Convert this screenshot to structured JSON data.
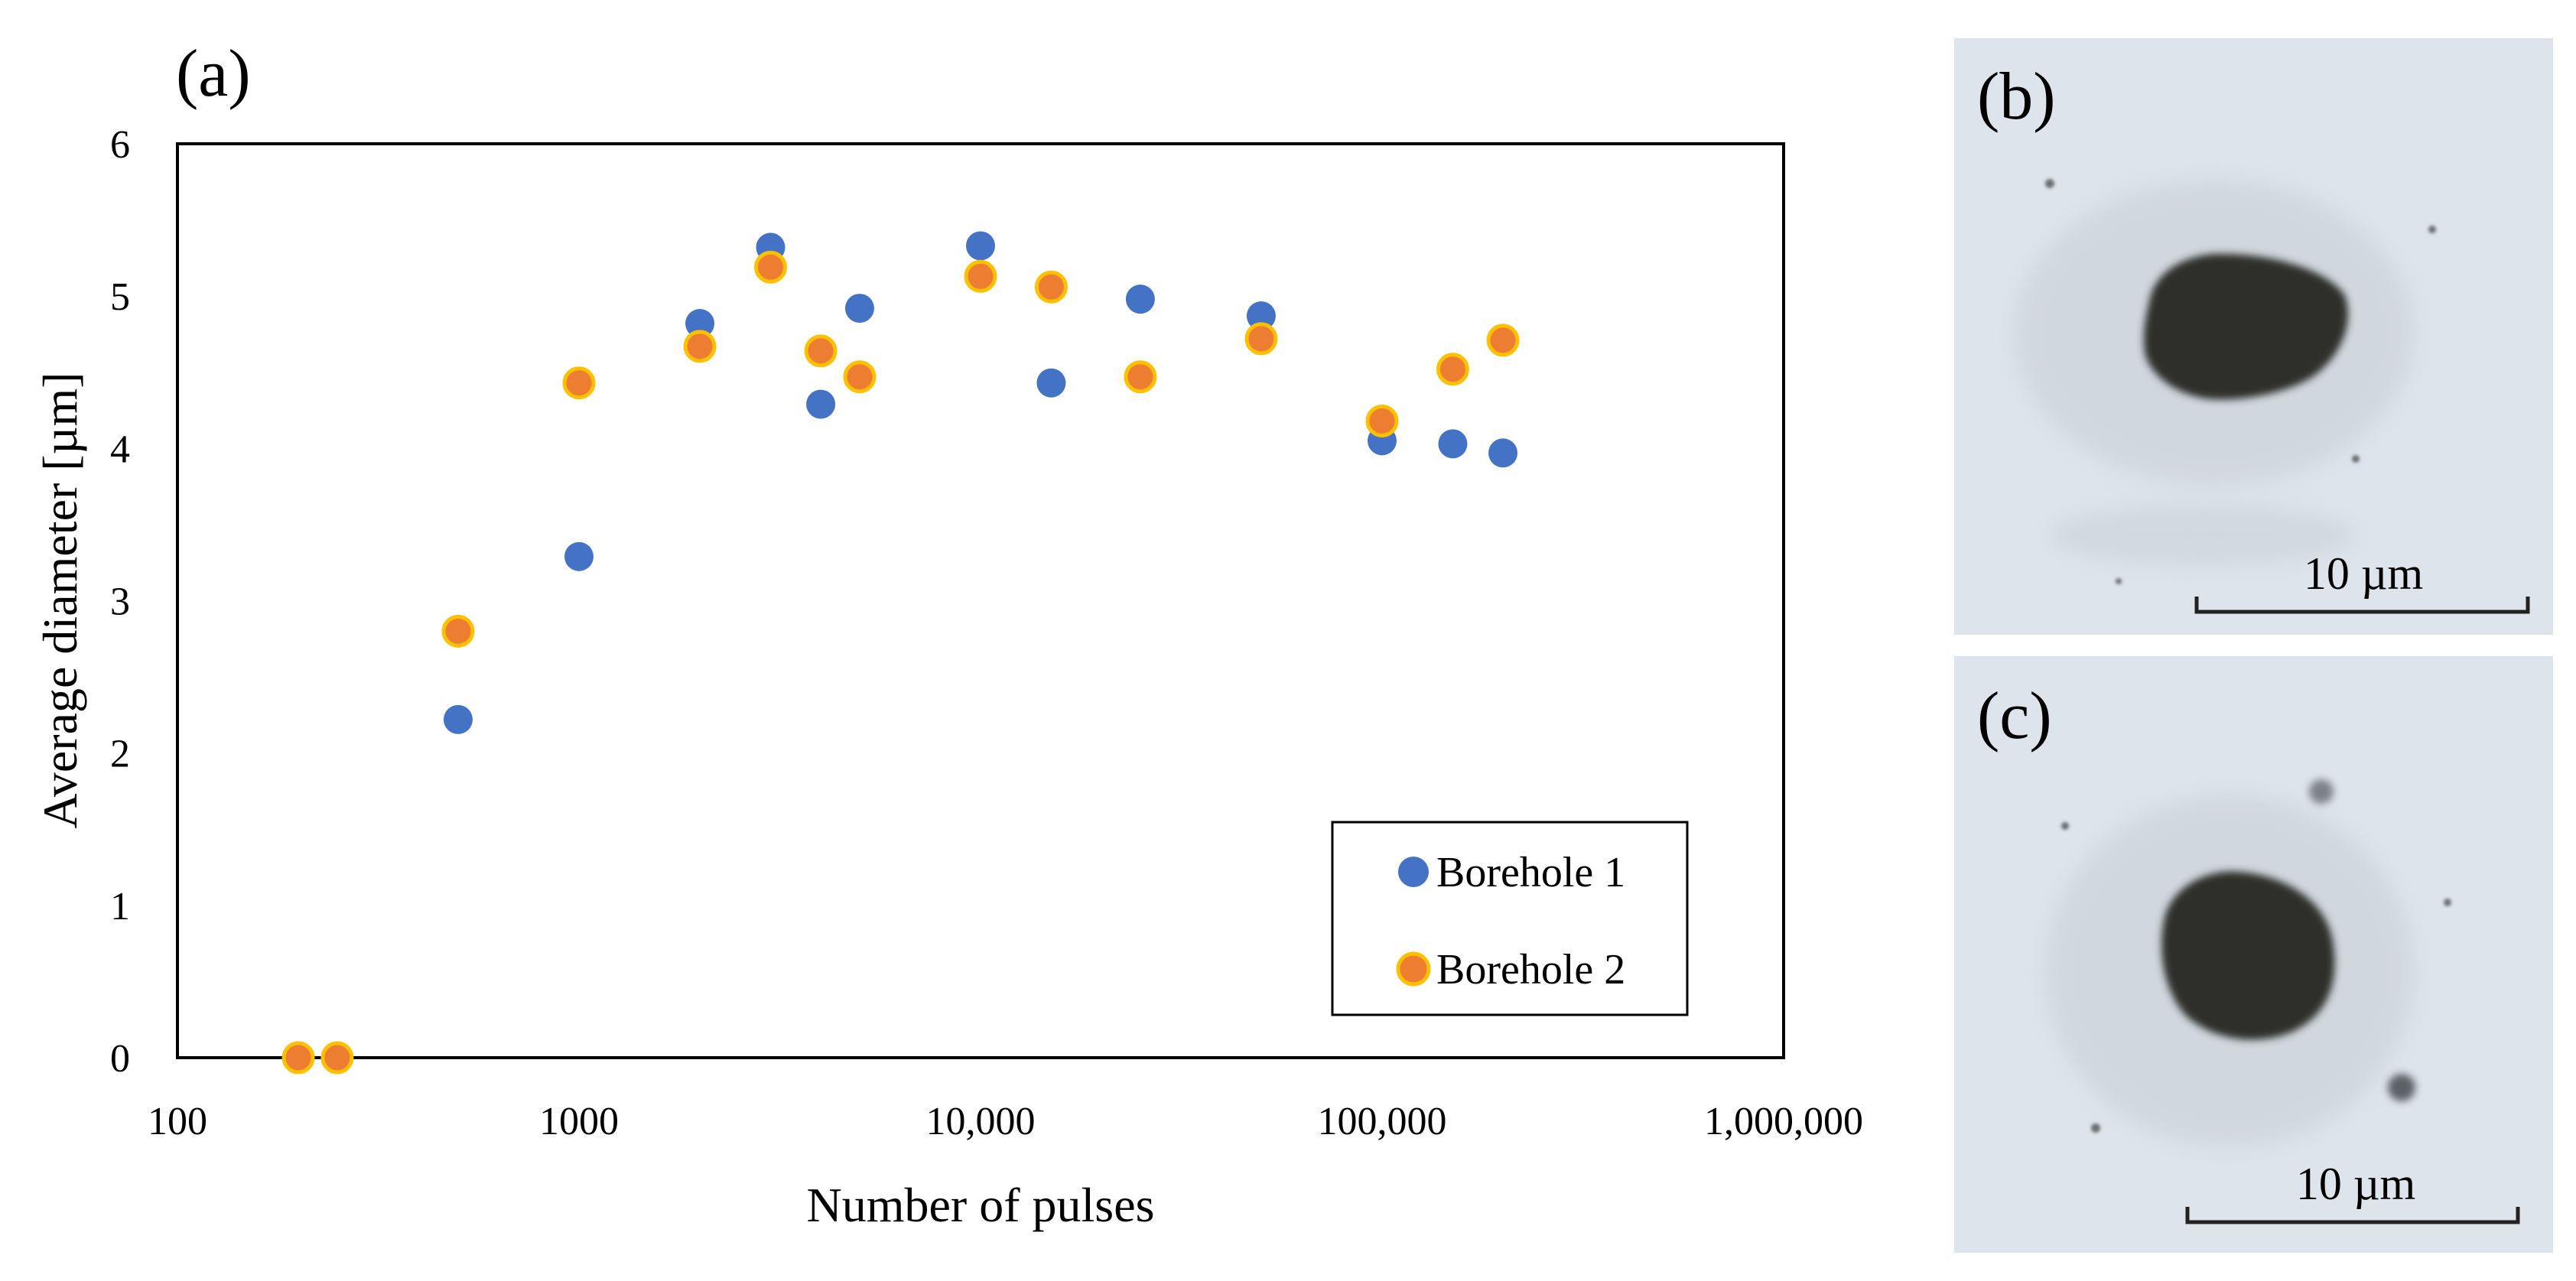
{
  "figure": {
    "panel_labels": {
      "a": "(a)",
      "b": "(b)",
      "c": "(c)"
    },
    "micrographs": [
      {
        "panel": "b",
        "scale_bar_label": "10 µm",
        "colors": {
          "background": "#dde4ec",
          "particle": "#2e2f2c"
        }
      },
      {
        "panel": "c",
        "scale_bar_label": "10 µm",
        "colors": {
          "background": "#dde4ec",
          "particle": "#2e2f2c"
        }
      }
    ]
  },
  "chart_data": {
    "type": "scatter",
    "title": "",
    "xlabel": "Number of pulses",
    "ylabel": "Average diameter [µm]",
    "xscale": "log",
    "xlim": [
      100,
      1000000
    ],
    "ylim": [
      0,
      6
    ],
    "xticks": [
      {
        "value": 100,
        "label": "100"
      },
      {
        "value": 1000,
        "label": "1000"
      },
      {
        "value": 10000,
        "label": "10,000"
      },
      {
        "value": 100000,
        "label": "100,000"
      },
      {
        "value": 1000000,
        "label": "1,000,000"
      }
    ],
    "yticks": [
      {
        "value": 0,
        "label": "0"
      },
      {
        "value": 1,
        "label": "1"
      },
      {
        "value": 2,
        "label": "2"
      },
      {
        "value": 3,
        "label": "3"
      },
      {
        "value": 4,
        "label": "4"
      },
      {
        "value": 5,
        "label": "5"
      },
      {
        "value": 6,
        "label": "6"
      }
    ],
    "grid": false,
    "legend_position": "bottom-right",
    "series": [
      {
        "name": "Borehole 1",
        "color": "#4472c4",
        "points": [
          {
            "x": 200,
            "y": 0
          },
          {
            "x": 250,
            "y": 0
          },
          {
            "x": 500,
            "y": 2.22
          },
          {
            "x": 1000,
            "y": 3.29
          },
          {
            "x": 2000,
            "y": 4.82
          },
          {
            "x": 3000,
            "y": 5.32
          },
          {
            "x": 4000,
            "y": 4.29
          },
          {
            "x": 5000,
            "y": 4.92
          },
          {
            "x": 10000,
            "y": 5.33
          },
          {
            "x": 15000,
            "y": 4.43
          },
          {
            "x": 25000,
            "y": 4.98
          },
          {
            "x": 50000,
            "y": 4.87
          },
          {
            "x": 100000,
            "y": 4.05
          },
          {
            "x": 150000,
            "y": 4.03
          },
          {
            "x": 200000,
            "y": 3.97
          }
        ]
      },
      {
        "name": "Borehole 2",
        "color": "#ed7d31",
        "edge_color": "#ffc000",
        "points": [
          {
            "x": 200,
            "y": 0
          },
          {
            "x": 250,
            "y": 0
          },
          {
            "x": 500,
            "y": 2.8
          },
          {
            "x": 1000,
            "y": 4.43
          },
          {
            "x": 2000,
            "y": 4.67
          },
          {
            "x": 3000,
            "y": 5.19
          },
          {
            "x": 4000,
            "y": 4.64
          },
          {
            "x": 5000,
            "y": 4.47
          },
          {
            "x": 10000,
            "y": 5.13
          },
          {
            "x": 15000,
            "y": 5.06
          },
          {
            "x": 25000,
            "y": 4.47
          },
          {
            "x": 50000,
            "y": 4.72
          },
          {
            "x": 100000,
            "y": 4.18
          },
          {
            "x": 150000,
            "y": 4.52
          },
          {
            "x": 200000,
            "y": 4.71
          }
        ]
      }
    ]
  }
}
